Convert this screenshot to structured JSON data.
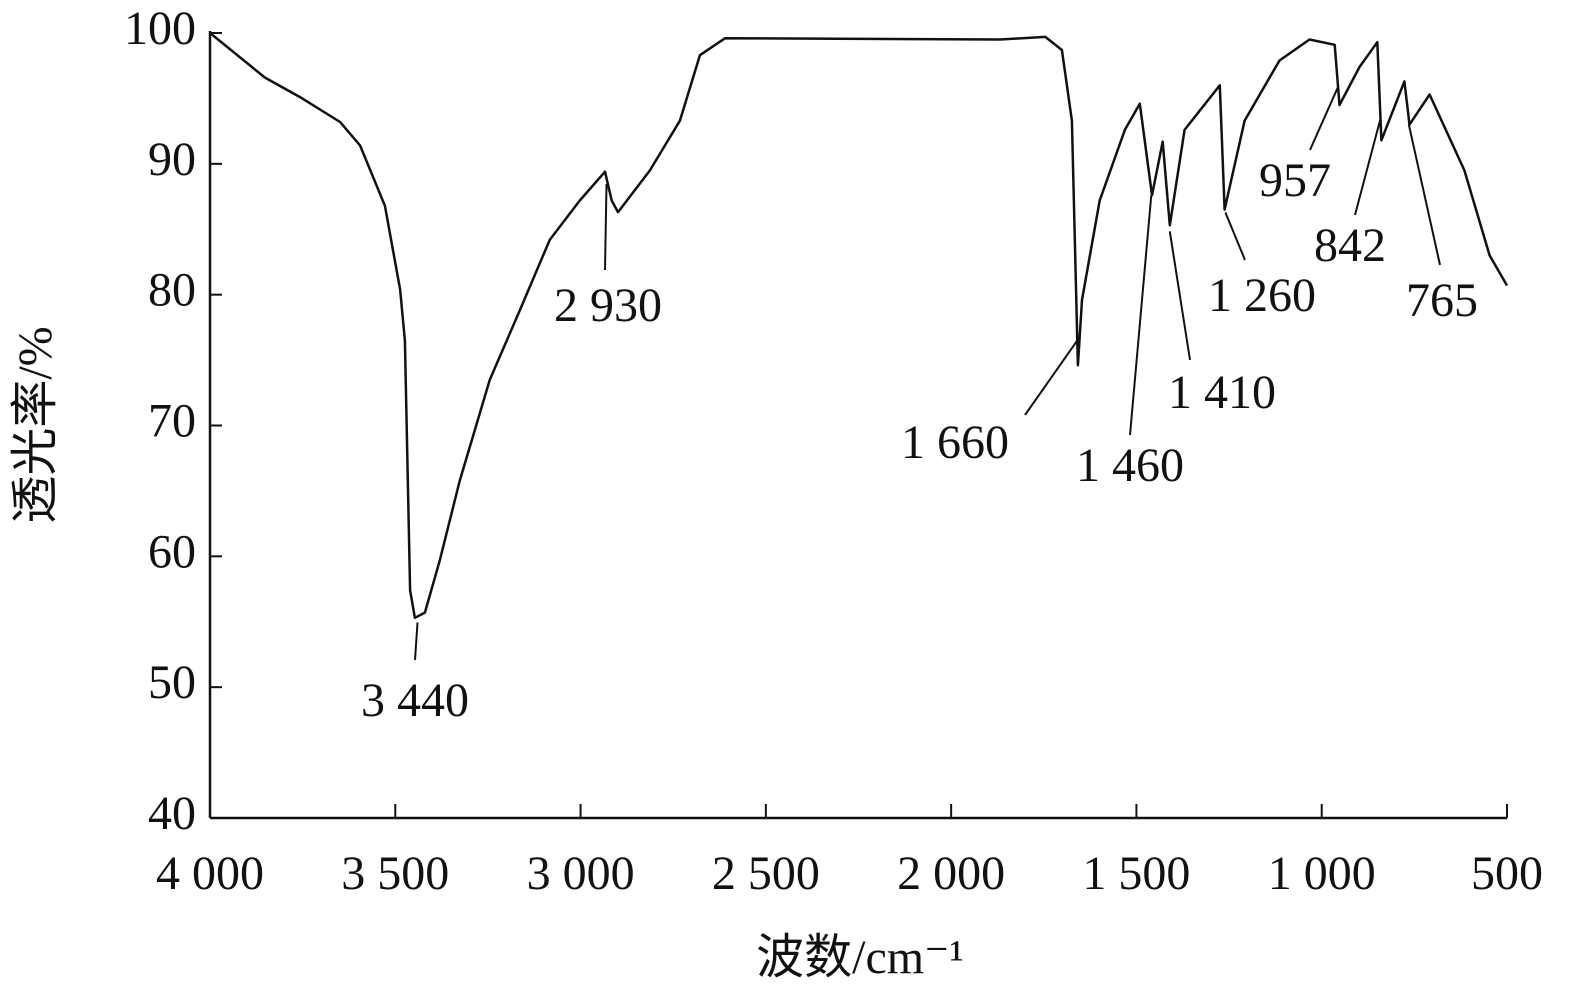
{
  "chart_data": {
    "type": "line",
    "xlabel": "波数/cm⁻¹",
    "ylabel": "透光率/%",
    "color": "#111111",
    "xlim": [
      4000,
      500
    ],
    "xticks": [
      {
        "value": 4000,
        "label": "4 000"
      },
      {
        "value": 3500,
        "label": "3 500"
      },
      {
        "value": 3000,
        "label": "3 000"
      },
      {
        "value": 2500,
        "label": "2 500"
      },
      {
        "value": 2000,
        "label": "2 000"
      },
      {
        "value": 1500,
        "label": "1 500"
      },
      {
        "value": 1000,
        "label": "1 000"
      },
      500
    ],
    "ylim": [
      40,
      100
    ],
    "yticks": [
      40,
      50,
      60,
      70,
      80,
      90,
      100
    ],
    "x": [
      4000,
      3852,
      3757,
      3649,
      3595,
      3528,
      3487,
      3474,
      3460,
      3447,
      3420,
      3380,
      3326,
      3245,
      3164,
      3083,
      3002,
      2934,
      2916,
      2899,
      2813,
      2732,
      2678,
      2610,
      1868,
      1746,
      1701,
      1674,
      1658,
      1647,
      1599,
      1531,
      1491,
      1458,
      1429,
      1410,
      1370,
      1275,
      1262,
      1208,
      1114,
      1033,
      965,
      952,
      898,
      850,
      839,
      777,
      763,
      709,
      615,
      547,
      500
    ],
    "values": [
      100,
      96.6,
      95.1,
      93.2,
      91.4,
      86.8,
      80.4,
      76.5,
      57.4,
      55.3,
      55.7,
      59.7,
      65.8,
      73.5,
      78.8,
      84.2,
      87.2,
      89.4,
      87.2,
      86.3,
      89.5,
      93.3,
      98.3,
      99.6,
      99.5,
      99.7,
      98.7,
      93.3,
      74.6,
      79.6,
      87.2,
      92.6,
      94.6,
      87.6,
      91.7,
      85.3,
      92.6,
      96.0,
      86.5,
      93.3,
      97.9,
      99.5,
      99.1,
      94.5,
      97.4,
      99.3,
      91.8,
      96.3,
      93.0,
      95.3,
      89.5,
      83.0,
      80.7
    ],
    "annotations": [
      {
        "text": "3 440",
        "x": 3440
      },
      {
        "text": "2 930",
        "x": 2930
      },
      {
        "text": "1 660",
        "x": 1660
      },
      {
        "text": "1 460",
        "x": 1460
      },
      {
        "text": "1 410",
        "x": 1410
      },
      {
        "text": "1 260",
        "x": 1260
      },
      {
        "text": "957",
        "x": 957
      },
      {
        "text": "842",
        "x": 842
      },
      {
        "text": "765",
        "x": 765
      }
    ]
  }
}
